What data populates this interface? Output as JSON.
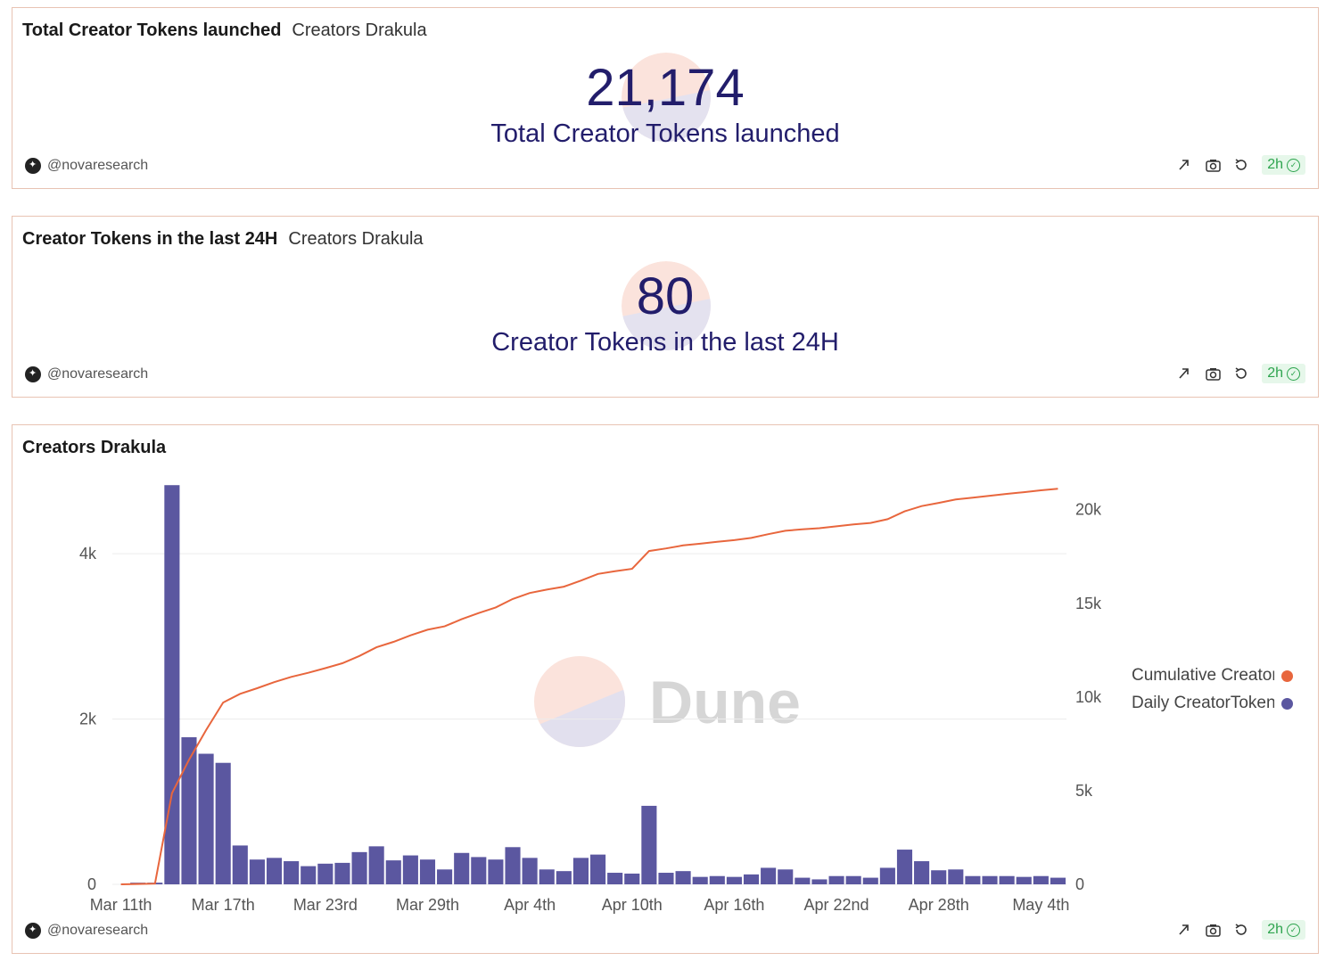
{
  "panels": {
    "total": {
      "title": "Total Creator Tokens launched",
      "subtitle": "Creators Drakula",
      "value": "21,174",
      "label": "Total Creator Tokens launched",
      "author": "@novaresearch",
      "age": "2h"
    },
    "last24": {
      "title": "Creator Tokens in the last 24H",
      "subtitle": "Creators Drakula",
      "value": "80",
      "label": "Creator Tokens in the last 24H",
      "author": "@novaresearch",
      "age": "2h"
    },
    "chart": {
      "title": "Creators Drakula",
      "author": "@novaresearch",
      "age": "2h",
      "watermark": "Dune"
    }
  },
  "icons": [
    "share-icon",
    "camera-icon",
    "refresh-icon",
    "check-circle-icon",
    "dune-logo-icon"
  ],
  "colors": {
    "bar": "#5b57a0",
    "line": "#e8663d",
    "counter": "#221d6b",
    "badge_bg": "#e6f7ea",
    "badge_fg": "#2da44e",
    "border": "#e8c3b3"
  },
  "chart_data": {
    "type": "bar",
    "x_tick_labels": [
      "Mar 11th",
      "Mar 17th",
      "Mar 23rd",
      "Mar 29th",
      "Apr 4th",
      "Apr 10th",
      "Apr 16th",
      "Apr 22nd",
      "Apr 28th",
      "May 4th"
    ],
    "y_left_ticks": [
      "0",
      "2k",
      "4k"
    ],
    "y_right_ticks": [
      "0",
      "5k",
      "10k",
      "15k",
      "20k"
    ],
    "y_left_range": [
      0,
      4800
    ],
    "y_right_range": [
      0,
      21174
    ],
    "grid": true,
    "legend_position": "right",
    "series": [
      {
        "name": "Daily CreatorTokens",
        "type": "bar",
        "axis": "left",
        "color": "#5b57a0",
        "values": [
          0,
          20,
          20,
          4830,
          1780,
          1580,
          1470,
          470,
          300,
          320,
          280,
          220,
          250,
          260,
          390,
          460,
          290,
          350,
          300,
          180,
          380,
          330,
          300,
          450,
          320,
          180,
          160,
          320,
          360,
          140,
          130,
          950,
          140,
          160,
          90,
          100,
          90,
          120,
          200,
          180,
          80,
          60,
          100,
          100,
          80,
          200,
          420,
          280,
          170,
          180,
          100,
          100,
          100,
          90,
          100,
          80
        ]
      },
      {
        "name": "Cumulative CreatorTokens",
        "type": "line",
        "axis": "right",
        "color": "#e8663d",
        "values": [
          0,
          20,
          40,
          4870,
          6650,
          8230,
          9700,
          10170,
          10470,
          10790,
          11070,
          11290,
          11540,
          11800,
          12190,
          12650,
          12940,
          13290,
          13590,
          13770,
          14150,
          14480,
          14780,
          15230,
          15550,
          15730,
          15890,
          16210,
          16570,
          16710,
          16840,
          17790,
          17930,
          18090,
          18180,
          18280,
          18370,
          18490,
          18690,
          18870,
          18950,
          19010,
          19110,
          19210,
          19290,
          19490,
          19910,
          20190,
          20360,
          20540,
          20640,
          20740,
          20840,
          20930,
          21030,
          21110
        ]
      }
    ]
  }
}
